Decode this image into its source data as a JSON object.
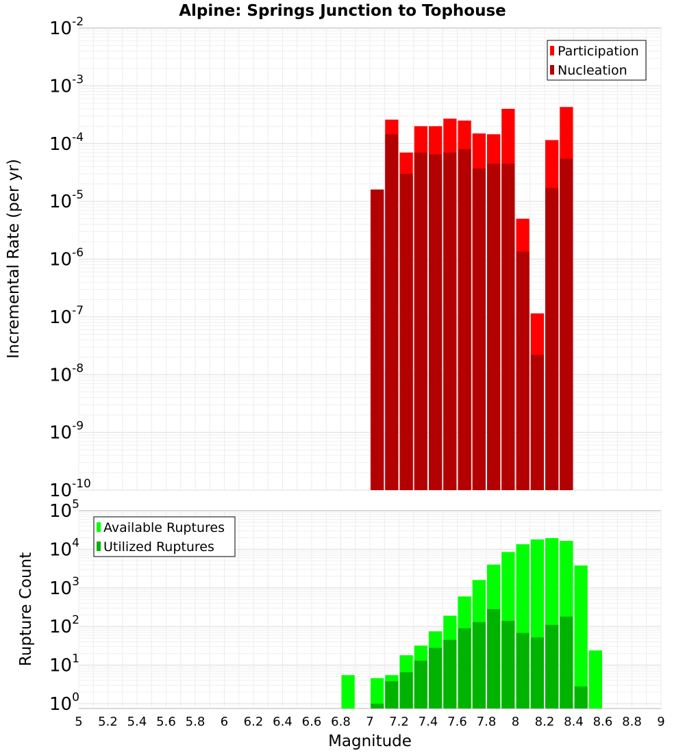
{
  "chart_data": [
    {
      "type": "bar",
      "title": "Alpine: Springs Junction to Tophouse",
      "ylabel": "Incremental Rate (per yr)",
      "xlabel": "",
      "yscale": "log",
      "ylim_exp": [
        -10,
        -2
      ],
      "xlim": [
        5,
        9
      ],
      "bar_width": 0.1,
      "grid": true,
      "legend_position": "top-right",
      "x": [
        7.05,
        7.15,
        7.25,
        7.35,
        7.45,
        7.55,
        7.65,
        7.75,
        7.85,
        7.95,
        8.05,
        8.15,
        8.25,
        8.35
      ],
      "series": [
        {
          "name": "Participation",
          "color": "#ff0000",
          "values": [
            1.6e-05,
            0.00026,
            7e-05,
            0.0002,
            0.0002,
            0.00027,
            0.00025,
            0.00015,
            0.000145,
            0.0004,
            5e-06,
            1.15e-07,
            0.000115,
            0.00043
          ]
        },
        {
          "name": "Nucleation",
          "color": "#b30000",
          "values": [
            1.6e-05,
            0.000145,
            3e-05,
            7e-05,
            6.5e-05,
            7e-05,
            8e-05,
            3.7e-05,
            4.5e-05,
            4.5e-05,
            1.35e-06,
            2.2e-08,
            1.7e-05,
            5.5e-05
          ]
        }
      ]
    },
    {
      "type": "bar",
      "title": "",
      "ylabel": "Rupture Count",
      "xlabel": "Magnitude",
      "yscale": "log",
      "ylim": [
        0.75,
        100000
      ],
      "ytick_exp": [
        0,
        1,
        2,
        3,
        4,
        5
      ],
      "xlim": [
        5,
        9
      ],
      "xticks": [
        "5",
        "5.2",
        "5.4",
        "5.6",
        "5.8",
        "6",
        "6.2",
        "6.4",
        "6.6",
        "6.8",
        "7",
        "7.2",
        "7.4",
        "7.6",
        "7.8",
        "8",
        "8.2",
        "8.4",
        "8.6",
        "8.8",
        "9"
      ],
      "bar_width": 0.1,
      "grid": true,
      "legend_position": "top-left",
      "x": [
        6.85,
        7.05,
        7.15,
        7.25,
        7.35,
        7.45,
        7.55,
        7.65,
        7.75,
        7.85,
        7.95,
        8.05,
        8.15,
        8.25,
        8.35,
        8.45,
        8.55
      ],
      "series": [
        {
          "name": "Available Ruptures",
          "color": "#00ff00",
          "values": [
            5.5,
            4.6,
            5.5,
            18,
            32,
            75,
            190,
            600,
            1600,
            4000,
            8500,
            13500,
            18000,
            19500,
            16500,
            3800,
            24
          ]
        },
        {
          "name": "Utilized Ruptures",
          "color": "#00b300",
          "values": [
            0,
            1,
            3.8,
            6.5,
            13,
            28,
            45,
            90,
            130,
            280,
            140,
            68,
            52,
            110,
            180,
            2.8,
            0
          ]
        }
      ]
    }
  ]
}
